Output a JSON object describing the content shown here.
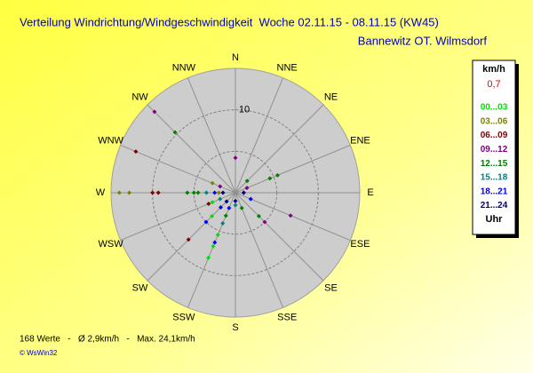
{
  "chart_data": {
    "type": "polar-scatter",
    "title": "Verteilung Windrichtung/Windgeschwindigkeit  Woche 02.11.15 - 08.11.15 (KW45)",
    "subtitle": "Bannewitz OT. Wilmsdorf",
    "directions": [
      "N",
      "NNE",
      "NE",
      "ENE",
      "E",
      "ESE",
      "SE",
      "SSE",
      "S",
      "SSW",
      "SW",
      "WSW",
      "W",
      "WNW",
      "NW",
      "NNW"
    ],
    "rlim": [
      0,
      15
    ],
    "rgrid": [
      5,
      10
    ],
    "rlabel": 10,
    "legend_title": "km/h",
    "calm": "0,7",
    "legend_unit": "Uhr",
    "series": [
      {
        "name": "00...03",
        "color": "#00e000",
        "values": [
          [
            202.5,
            8.5
          ],
          [
            202.5,
            7
          ],
          [
            202.5,
            5.5
          ],
          [
            225,
            4
          ],
          [
            247.5,
            3
          ]
        ]
      },
      {
        "name": "03...06",
        "color": "#808000",
        "values": [
          [
            270,
            14
          ],
          [
            270,
            12.8
          ],
          [
            292.5,
            3
          ],
          [
            270,
            2
          ]
        ]
      },
      {
        "name": "06...09",
        "color": "#800000",
        "values": [
          [
            292.5,
            13
          ],
          [
            270,
            10
          ],
          [
            270,
            9.3
          ],
          [
            225,
            8
          ],
          [
            247.5,
            3.5
          ],
          [
            90,
            1
          ]
        ]
      },
      {
        "name": "09...12",
        "color": "#800080",
        "values": [
          [
            315,
            13.8
          ],
          [
            292.5,
            2
          ],
          [
            0,
            4.2
          ],
          [
            112.5,
            7.2
          ],
          [
            135,
            5
          ],
          [
            67.5,
            1.5
          ]
        ]
      },
      {
        "name": "12...15",
        "color": "#008000",
        "values": [
          [
            315,
            10.3
          ],
          [
            270,
            5.8
          ],
          [
            270,
            5
          ],
          [
            270,
            4.5
          ],
          [
            67.5,
            5.5
          ],
          [
            67.5,
            4.5
          ],
          [
            135,
            4
          ],
          [
            157.5,
            2
          ],
          [
            202.5,
            3
          ],
          [
            45,
            2
          ]
        ]
      },
      {
        "name": "15...18",
        "color": "#008080",
        "values": [
          [
            270,
            3.5
          ],
          [
            247.5,
            2
          ],
          [
            180,
            1.5
          ],
          [
            202.5,
            4
          ]
        ]
      },
      {
        "name": "18...21",
        "color": "#0000ff",
        "values": [
          [
            270,
            2.5
          ],
          [
            202.5,
            6.5
          ],
          [
            225,
            5
          ],
          [
            225,
            2.5
          ],
          [
            202.5,
            2
          ],
          [
            112.5,
            2
          ]
        ]
      },
      {
        "name": "21...24",
        "color": "#000080",
        "values": [
          [
            270,
            1.5
          ],
          [
            225,
            1.5
          ],
          [
            90,
            1
          ],
          [
            180,
            1
          ]
        ]
      }
    ],
    "footer": "168 Werte   -   Ø 2,9km/h   -   Max. 24,1km/h",
    "credit": "© WsWin32"
  }
}
